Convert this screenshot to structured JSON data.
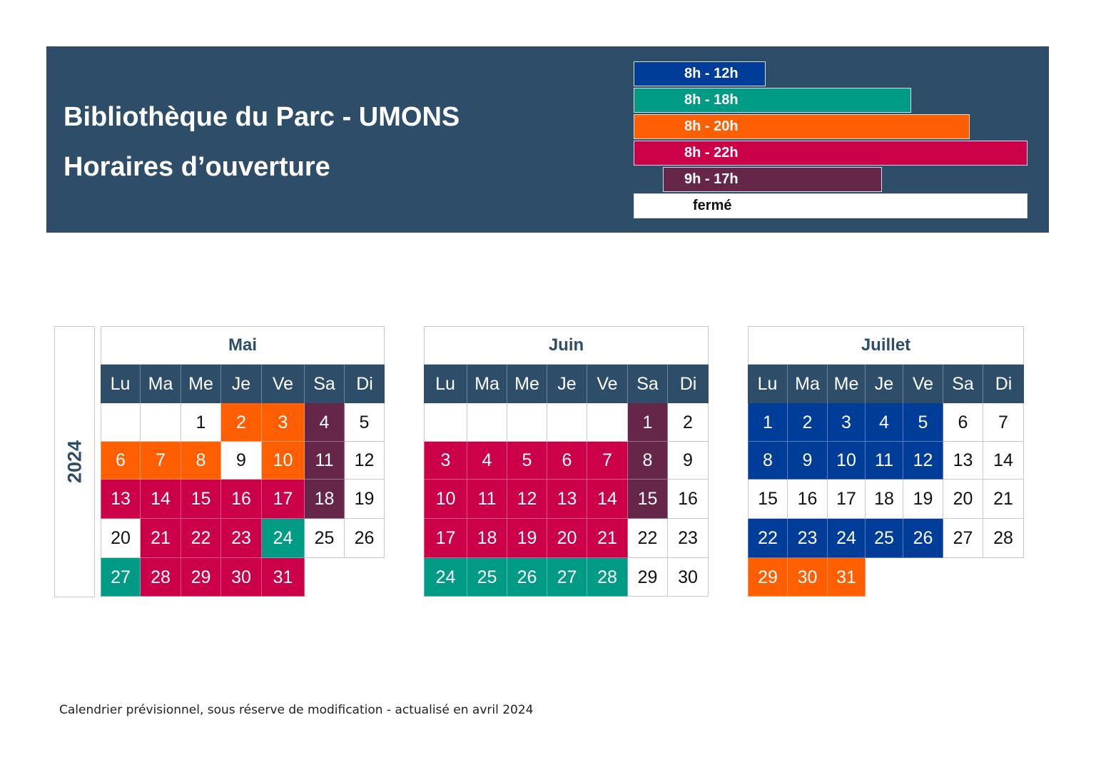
{
  "header": {
    "title": "Bibliothèque du Parc - UMONS",
    "subtitle": "Horaires d’ouverture"
  },
  "legend": [
    {
      "key": "a",
      "label": "8h - 12h",
      "color": "#003d99",
      "text_color": "#ffffff"
    },
    {
      "key": "b",
      "label": "8h - 18h",
      "color": "#009b84",
      "text_color": "#ffffff"
    },
    {
      "key": "c",
      "label": "8h - 20h",
      "color": "#ff5f00",
      "text_color": "#ffffff"
    },
    {
      "key": "d",
      "label": "8h - 22h",
      "color": "#cc0049",
      "text_color": "#ffffff"
    },
    {
      "key": "e",
      "label": "9h - 17h",
      "color": "#66264a",
      "text_color": "#ffffff"
    },
    {
      "key": "f",
      "label": "fermé",
      "color": "#ffffff",
      "text_color": "#111111"
    }
  ],
  "year": "2024",
  "weekdays": [
    "Lu",
    "Ma",
    "Me",
    "Je",
    "Ve",
    "Sa",
    "Di"
  ],
  "months": [
    {
      "name": "Mai",
      "offset": 2,
      "days": [
        "f",
        "c",
        "c",
        "e",
        "f",
        "c",
        "c",
        "c",
        "f",
        "c",
        "e",
        "f",
        "d",
        "d",
        "d",
        "d",
        "d",
        "e",
        "f",
        "f",
        "d",
        "d",
        "d",
        "b",
        "f",
        "f",
        "b",
        "d",
        "d",
        "d",
        "d"
      ]
    },
    {
      "name": "Juin",
      "offset": 5,
      "days": [
        "e",
        "f",
        "d",
        "d",
        "d",
        "d",
        "d",
        "e",
        "f",
        "d",
        "d",
        "d",
        "d",
        "d",
        "e",
        "f",
        "d",
        "d",
        "d",
        "d",
        "d",
        "f",
        "f",
        "b",
        "b",
        "b",
        "b",
        "b",
        "f",
        "f"
      ]
    },
    {
      "name": "Juillet",
      "offset": 0,
      "days": [
        "a",
        "a",
        "a",
        "a",
        "a",
        "f",
        "f",
        "a",
        "a",
        "a",
        "a",
        "a",
        "f",
        "f",
        "f",
        "f",
        "f",
        "f",
        "f",
        "f",
        "f",
        "a",
        "a",
        "a",
        "a",
        "a",
        "f",
        "f",
        "c",
        "c",
        "c"
      ]
    }
  ],
  "footer": "Calendrier prévisionnel, sous réserve de modification - actualisé en avril 2024"
}
